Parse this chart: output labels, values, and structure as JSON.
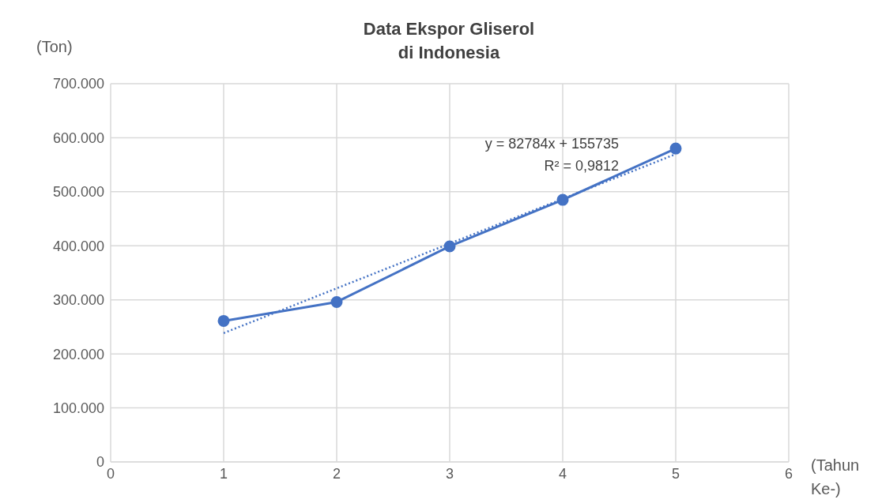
{
  "chart_data": {
    "type": "line",
    "title": "Data Ekspor Gliserol di Indonesia",
    "ylabel": "(Ton)",
    "xlabel": "(Tahun Ke-)",
    "x": [
      1,
      2,
      3,
      4,
      5
    ],
    "series": [
      {
        "color": "#4472c4",
        "values": [
          261000,
          296000,
          399000,
          485000,
          580000
        ]
      },
      {
        "type": "line",
        "color": "#4472c4",
        "x": [
          1,
          5
        ],
        "values": [
          238500,
          569700
        ],
        "marker": "none",
        "line_style": "dotted"
      }
    ],
    "xlim": [
      0,
      6
    ],
    "xticks": [
      0,
      1,
      2,
      3,
      4,
      5,
      6
    ],
    "ylim": [
      0,
      700000
    ],
    "yticks": [
      0,
      {
        "value": 100000,
        "label": "100.000"
      },
      {
        "value": 200000,
        "label": "200.000"
      },
      {
        "value": 300000,
        "label": "300.000"
      },
      {
        "value": 400000,
        "label": "400.000"
      },
      {
        "value": 500000,
        "label": "500.000"
      },
      {
        "value": 600000,
        "label": "600.000"
      },
      {
        "value": 700000,
        "label": "700.000"
      }
    ],
    "annotations": [
      "y = 82784x + 155735",
      "R² = 0,9812"
    ],
    "grid": true,
    "marker": "circle",
    "line_style": "solid"
  }
}
